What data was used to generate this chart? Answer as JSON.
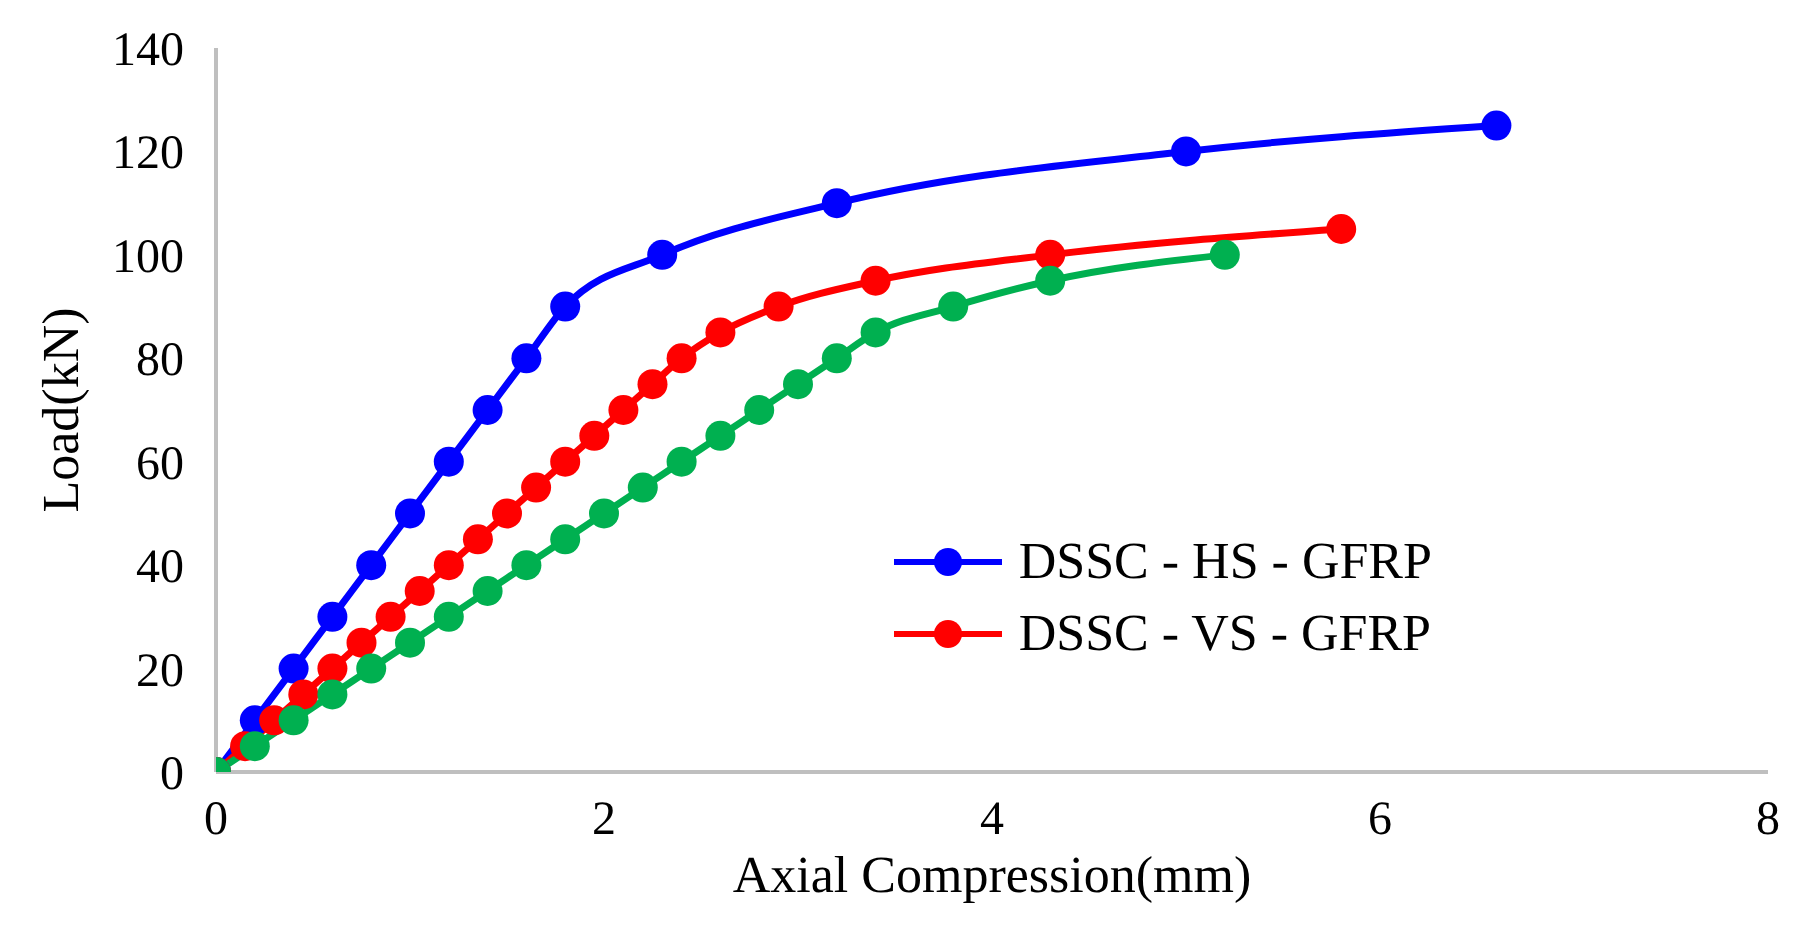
{
  "chart_data": {
    "type": "line",
    "xlabel": "Axial Compression(mm)",
    "ylabel": "Load(kN)",
    "xlim": [
      0,
      8
    ],
    "xticks": [
      0,
      2,
      4,
      6,
      8
    ],
    "ylim": [
      0,
      140
    ],
    "yticks": [
      0,
      20,
      40,
      60,
      80,
      100,
      120,
      140
    ],
    "grid": false,
    "legend": "bottom right",
    "marker": "circle",
    "line_style": "solid",
    "series": [
      {
        "name": "DSSC - HS - GFRP",
        "color": "#0000ff",
        "x": [
          0,
          0.2,
          0.4,
          0.6,
          0.8,
          1.0,
          1.2,
          1.4,
          1.6,
          1.8,
          2.3,
          3.2,
          5.0,
          6.6
        ],
        "values": [
          0,
          10,
          20,
          30,
          40,
          50,
          60,
          70,
          80,
          90,
          100,
          110,
          120,
          125
        ]
      },
      {
        "name": "DSSC - VS - GFRP",
        "color": "#ff0000",
        "x": [
          0,
          0.15,
          0.3,
          0.45,
          0.6,
          0.75,
          0.9,
          1.05,
          1.2,
          1.35,
          1.5,
          1.65,
          1.8,
          1.95,
          2.1,
          2.25,
          2.4,
          2.6,
          2.9,
          3.4,
          4.3,
          5.8
        ],
        "values": [
          0,
          5,
          10,
          15,
          20,
          25,
          30,
          35,
          40,
          45,
          50,
          55,
          60,
          65,
          70,
          75,
          80,
          85,
          90,
          95,
          100,
          105
        ]
      },
      {
        "color": "#00b050",
        "x": [
          0,
          0.2,
          0.4,
          0.6,
          0.8,
          1.0,
          1.2,
          1.4,
          1.6,
          1.8,
          2.0,
          2.2,
          2.4,
          2.6,
          2.8,
          3.0,
          3.2,
          3.4,
          3.8,
          4.3,
          5.2
        ],
        "values": [
          0,
          5,
          10,
          15,
          20,
          25,
          30,
          35,
          40,
          45,
          50,
          55,
          60,
          65,
          70,
          75,
          80,
          85,
          90,
          95,
          100
        ]
      }
    ]
  }
}
